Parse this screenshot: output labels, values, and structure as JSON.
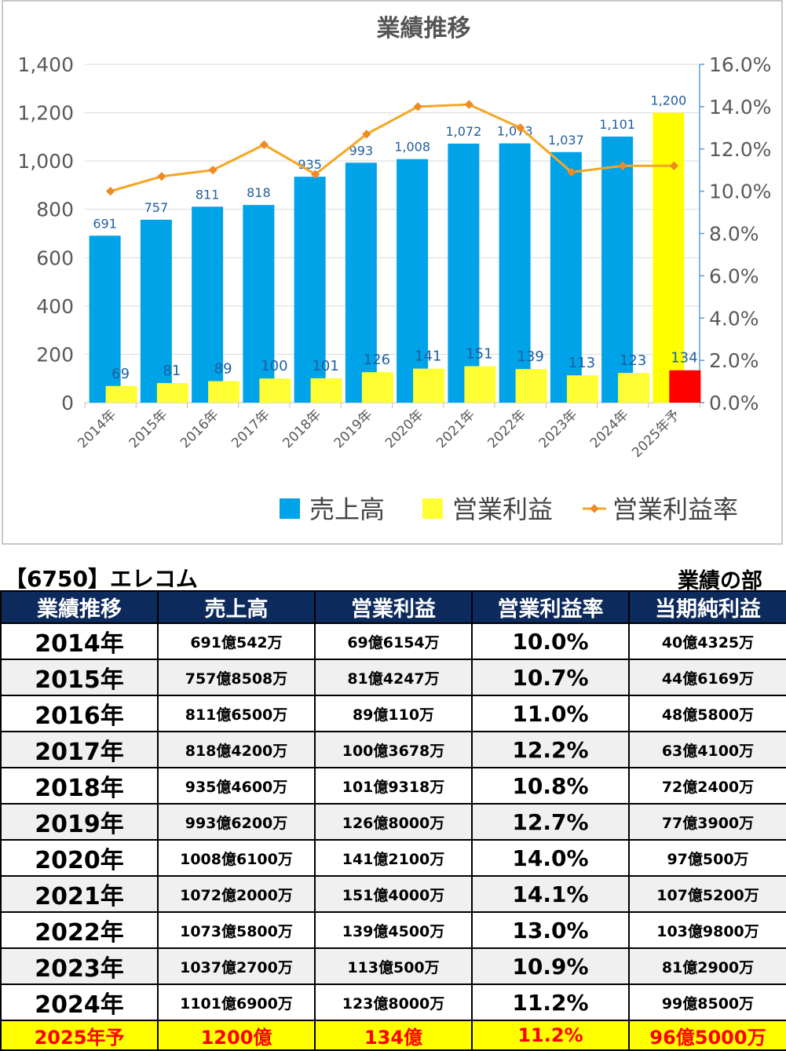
{
  "chart_data": {
    "type": "bar+line",
    "title": "業績推移",
    "categories": [
      "2014年",
      "2015年",
      "2016年",
      "2017年",
      "2018年",
      "2019年",
      "2020年",
      "2021年",
      "2022年",
      "2023年",
      "2024年",
      "2025年予"
    ],
    "series": [
      {
        "name": "売上高",
        "type": "bar",
        "axis": "left",
        "color": "#00a2e8",
        "values": [
          691,
          757,
          811,
          818,
          935,
          993,
          1008,
          1072,
          1073,
          1037,
          1101,
          1200
        ],
        "labels": [
          "691",
          "757",
          "811",
          "818",
          "935",
          "993",
          "1,008",
          "1,072",
          "1,073",
          "1,037",
          "1,101",
          "1,200"
        ]
      },
      {
        "name": "営業利益",
        "type": "bar",
        "axis": "left",
        "color": "#ffff33",
        "values": [
          69,
          81,
          89,
          100,
          101,
          126,
          141,
          151,
          139,
          113,
          123,
          134
        ],
        "labels": [
          "69",
          "81",
          "89",
          "100",
          "101",
          "126",
          "141",
          "151",
          "139",
          "113",
          "123",
          "134"
        ]
      },
      {
        "name": "営業利益率",
        "type": "line",
        "axis": "right",
        "color": "#f5a623",
        "values": [
          10.0,
          10.7,
          11.0,
          12.2,
          10.8,
          12.7,
          14.0,
          14.1,
          13.0,
          10.9,
          11.2,
          11.2
        ]
      }
    ],
    "forecast_colors": {
      "sales": "#ffff00",
      "op": "#ff0000"
    },
    "ylim_left": [
      0,
      1400
    ],
    "yticks_left": [
      "0",
      "200",
      "400",
      "600",
      "800",
      "1,000",
      "1,200",
      "1,400"
    ],
    "ylim_right": [
      0,
      16
    ],
    "yticks_right": [
      "0.0%",
      "2.0%",
      "4.0%",
      "6.0%",
      "8.0%",
      "10.0%",
      "12.0%",
      "14.0%",
      "16.0%"
    ],
    "legend_position": "bottom",
    "grid": true
  },
  "table": {
    "company": "【6750】エレコム",
    "section": "業績の部",
    "headers": [
      "業績推移",
      "売上高",
      "営業利益",
      "営業利益率",
      "当期純利益"
    ],
    "rows": [
      [
        "2014年",
        "691億542万",
        "69億6154万",
        "10.0%",
        "40億4325万"
      ],
      [
        "2015年",
        "757億8508万",
        "81億4247万",
        "10.7%",
        "44億6169万"
      ],
      [
        "2016年",
        "811億6500万",
        "89億110万",
        "11.0%",
        "48億5800万"
      ],
      [
        "2017年",
        "818億4200万",
        "100億3678万",
        "12.2%",
        "63億4100万"
      ],
      [
        "2018年",
        "935億4600万",
        "101億9318万",
        "10.8%",
        "72億2400万"
      ],
      [
        "2019年",
        "993億6200万",
        "126億8000万",
        "12.7%",
        "77億3900万"
      ],
      [
        "2020年",
        "1008億6100万",
        "141億2100万",
        "14.0%",
        "97億500万"
      ],
      [
        "2021年",
        "1072億2000万",
        "151億4000万",
        "14.1%",
        "107億5200万"
      ],
      [
        "2022年",
        "1073億5800万",
        "139億4500万",
        "13.0%",
        "103億9800万"
      ],
      [
        "2023年",
        "1037億2700万",
        "113億500万",
        "10.9%",
        "81億2900万"
      ],
      [
        "2024年",
        "1101億6900万",
        "123億8000万",
        "11.2%",
        "99億8500万"
      ]
    ],
    "forecast_row": [
      "2025年予",
      "1200億",
      "134億",
      "11.2%",
      "96億5000万"
    ]
  }
}
